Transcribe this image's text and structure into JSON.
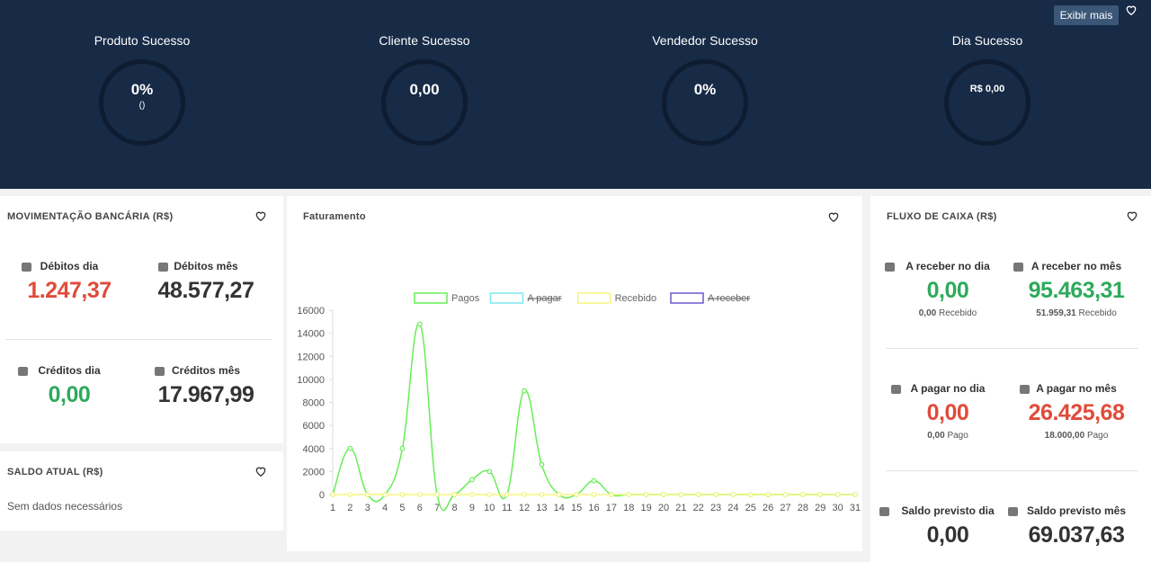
{
  "header": {
    "button": "Exibir mais",
    "gauges": [
      {
        "title": "Produto Sucesso",
        "value": "0%",
        "sub": "()"
      },
      {
        "title": "Cliente Sucesso",
        "value": "0,00"
      },
      {
        "title": "Vendedor Sucesso",
        "value": "0%"
      },
      {
        "title": "Dia Sucesso",
        "value": "R$ 0,00"
      }
    ]
  },
  "movimentacao": {
    "title": "MOVIMENTAÇÃO BANCÁRIA (R$)",
    "items": [
      {
        "label": "Débitos dia",
        "value": "1.247,37",
        "color": "#e04b3a"
      },
      {
        "label": "Débitos mês",
        "value": "48.577,27",
        "color": "#333333"
      },
      {
        "label": "Créditos dia",
        "value": "0,00",
        "color": "#2eaa5c"
      },
      {
        "label": "Créditos mês",
        "value": "17.967,99",
        "color": "#333333"
      }
    ]
  },
  "saldo": {
    "title": "SALDO ATUAL (R$)",
    "message": "Sem dados necessários"
  },
  "chart_data": {
    "type": "line",
    "title": "Faturamento",
    "categories": [
      1,
      2,
      3,
      4,
      5,
      6,
      7,
      8,
      9,
      10,
      11,
      12,
      13,
      14,
      15,
      16,
      17,
      18,
      19,
      20,
      21,
      22,
      23,
      24,
      25,
      26,
      27,
      28,
      29,
      30,
      31
    ],
    "series": [
      {
        "name": "Pagos",
        "color": "#66ee55",
        "values": [
          0,
          4000,
          0,
          0,
          4000,
          14800,
          0,
          0,
          1300,
          2000,
          0,
          9000,
          2600,
          0,
          0,
          1200,
          0,
          0,
          0,
          0,
          0,
          0,
          0,
          0,
          0,
          0,
          0,
          0,
          0,
          0,
          0
        ]
      },
      {
        "name": "A pagar",
        "color": "#7fe9f0",
        "hidden": true
      },
      {
        "name": "Recebido",
        "color": "#f5f57a",
        "values": [
          0,
          0,
          0,
          0,
          0,
          0,
          0,
          0,
          0,
          0,
          0,
          0,
          0,
          0,
          0,
          0,
          0,
          0,
          0,
          0,
          0,
          0,
          0,
          0,
          0,
          0,
          0,
          0,
          0,
          0,
          0
        ]
      },
      {
        "name": "A receber",
        "color": "#6a5acd",
        "hidden": true
      }
    ],
    "ylim": [
      0,
      16000
    ],
    "yticks": [
      0,
      2000,
      4000,
      6000,
      8000,
      10000,
      12000,
      14000,
      16000
    ]
  },
  "fluxo": {
    "title": "FLUXO DE CAIXA (R$)",
    "items": [
      {
        "label": "A receber no dia",
        "value": "0,00",
        "color": "#2eaa5c",
        "sub_value": "0,00",
        "sub_label": "Recebido"
      },
      {
        "label": "A receber no mês",
        "value": "95.463,31",
        "color": "#2eaa5c",
        "sub_value": "51.959,31",
        "sub_label": "Recebido"
      },
      {
        "label": "A pagar no dia",
        "value": "0,00",
        "color": "#e04b3a",
        "sub_value": "0,00",
        "sub_label": "Pago"
      },
      {
        "label": "A pagar no mês",
        "value": "26.425,68",
        "color": "#e04b3a",
        "sub_value": "18.000,00",
        "sub_label": "Pago"
      },
      {
        "label": "Saldo previsto dia",
        "value": "0,00",
        "color": "#333333"
      },
      {
        "label": "Saldo previsto mês",
        "value": "69.037,63",
        "color": "#333333"
      }
    ]
  }
}
